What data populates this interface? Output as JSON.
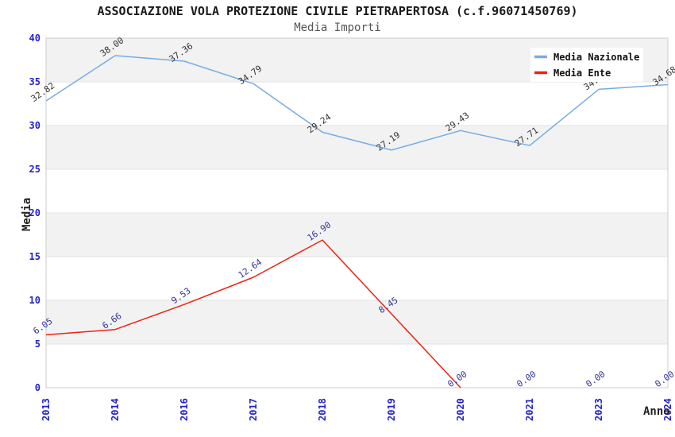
{
  "chart_data": {
    "type": "line",
    "title": "ASSOCIAZIONE VOLA PROTEZIONE CIVILE PIETRAPERTOSA (c.f.96071450769)",
    "subtitle": "Media Importi",
    "xlabel": "Anno",
    "ylabel": "Media",
    "categories": [
      "2013",
      "2014",
      "2016",
      "2017",
      "2018",
      "2019",
      "2020",
      "2021",
      "2023",
      "2024"
    ],
    "series": [
      {
        "name": "Media Nazionale",
        "color": "#76ace4",
        "label_color": "#333333",
        "values": [
          32.82,
          38.0,
          37.36,
          34.79,
          29.24,
          27.19,
          29.43,
          27.71,
          34.15,
          34.68
        ],
        "point_labels": [
          "32.82",
          "38.00",
          "37.36",
          "34.79",
          "29.24",
          "27.19",
          "29.43",
          "27.71",
          "34.15",
          "34.68"
        ],
        "line_points": 10
      },
      {
        "name": "Media Ente",
        "color": "#ee2211",
        "label_color": "#333399",
        "values": [
          6.05,
          6.66,
          9.53,
          12.64,
          16.9,
          8.45,
          0.0,
          0.0,
          0.0,
          0.0
        ],
        "point_labels": [
          "6.05",
          "6.66",
          "9.53",
          "12.64",
          "16.90",
          "8.45",
          "0.00",
          "0.00",
          "0.00",
          "0.00"
        ],
        "line_points": 7
      }
    ],
    "ylim": [
      0,
      40
    ],
    "ytick_step": 5,
    "ytick_labels": [
      "40",
      "35",
      "30",
      "25",
      "20",
      "15",
      "10",
      "5",
      "0"
    ],
    "grid": "horizontal-bands",
    "legend_position": "top-right",
    "legend_background": "#ffffff",
    "axis_tick_color": "#2222cc",
    "axis_title_color": "#222222",
    "band_color": "#f2f2f2",
    "gridline_color": "#e2e2e2",
    "plot_border_color": "#cccccc"
  }
}
